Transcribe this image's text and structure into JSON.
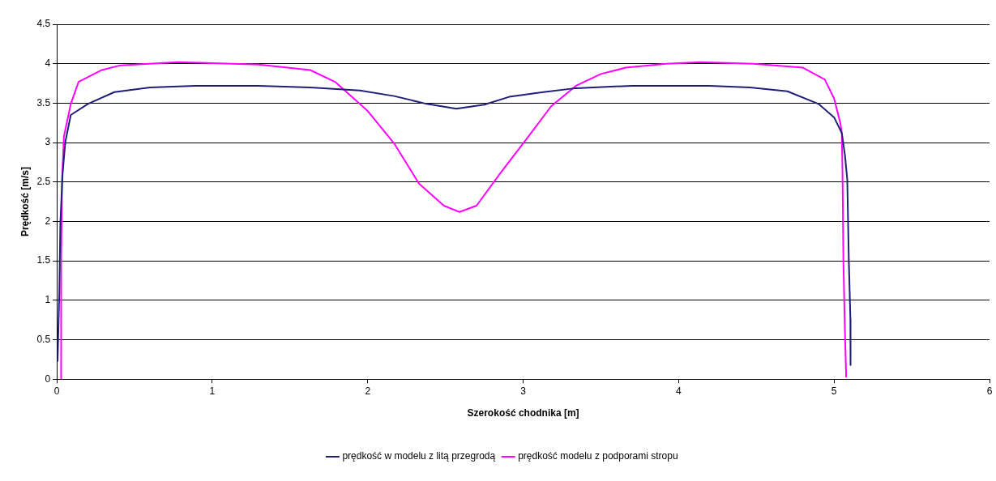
{
  "chart_data": {
    "type": "line",
    "xlabel": "Szerokość chodnika [m]",
    "ylabel": "Prędkość [m/s]",
    "xlim": [
      0,
      6
    ],
    "xticks": [
      0,
      1,
      2,
      3,
      4,
      5,
      6
    ],
    "ylim": [
      0,
      4.5
    ],
    "yticks": [
      0,
      0.5,
      1,
      1.5,
      2,
      2.5,
      3,
      3.5,
      4,
      4.5
    ],
    "grid": "y",
    "legend": "bottom",
    "marker": "none",
    "line_style": "solid",
    "series": [
      {
        "name": "prędkość w modelu z litą przegrodą",
        "color": "#1f1f7a",
        "x": [
          0.005,
          0.016,
          0.023,
          0.037,
          0.055,
          0.09,
          0.2,
          0.37,
          0.6,
          0.89,
          1.3,
          1.63,
          1.95,
          2.17,
          2.38,
          2.57,
          2.75,
          2.91,
          3.13,
          3.34,
          3.7,
          4.2,
          4.46,
          4.7,
          4.9,
          5.0,
          5.05,
          5.07,
          5.085,
          5.095,
          5.105,
          5.106
        ],
        "values": [
          0.23,
          1.08,
          1.98,
          2.6,
          3.01,
          3.35,
          3.49,
          3.64,
          3.7,
          3.72,
          3.72,
          3.7,
          3.66,
          3.59,
          3.49,
          3.43,
          3.48,
          3.58,
          3.64,
          3.69,
          3.72,
          3.72,
          3.7,
          3.65,
          3.49,
          3.32,
          3.12,
          2.84,
          2.53,
          1.5,
          0.77,
          0.18
        ]
      },
      {
        "name": "prędkość modelu z podporami stropu",
        "color": "#ff00ff",
        "x": [
          0.028,
          0.028,
          0.034,
          0.046,
          0.09,
          0.14,
          0.29,
          0.41,
          0.78,
          1.3,
          1.63,
          1.79,
          2.0,
          2.17,
          2.33,
          2.49,
          2.59,
          2.7,
          2.86,
          3.02,
          3.18,
          3.34,
          3.5,
          3.66,
          3.92,
          4.14,
          4.48,
          4.8,
          4.94,
          5.0,
          5.04,
          5.05,
          5.055,
          5.06,
          5.07,
          5.078
        ],
        "values": [
          0,
          1.5,
          2.53,
          3.08,
          3.49,
          3.77,
          3.92,
          3.98,
          4.02,
          3.99,
          3.92,
          3.77,
          3.4,
          2.99,
          2.48,
          2.2,
          2.12,
          2.2,
          2.63,
          3.04,
          3.46,
          3.72,
          3.87,
          3.95,
          4.0,
          4.02,
          4.0,
          3.95,
          3.8,
          3.56,
          3.25,
          3.12,
          2.5,
          1.5,
          0.6,
          0.03
        ]
      }
    ]
  }
}
